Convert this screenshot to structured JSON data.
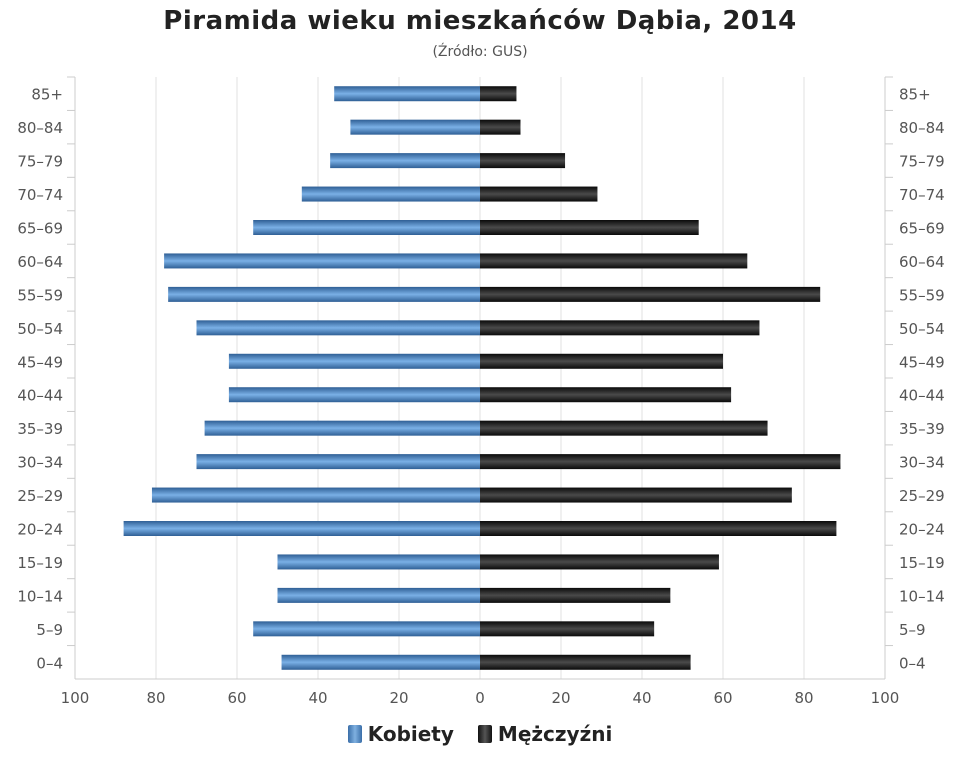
{
  "chart_data": {
    "type": "bar",
    "title": "Piramida wieku mieszkańców Dąbia, 2014",
    "subtitle": "(Źródło: GUS)",
    "categories": [
      "85+",
      "80–84",
      "75–79",
      "70–74",
      "65–69",
      "60–64",
      "55–59",
      "50–54",
      "45–49",
      "40–44",
      "35–39",
      "30–34",
      "25–29",
      "20–24",
      "15–19",
      "10–14",
      "5–9",
      "0–4"
    ],
    "series": [
      {
        "name": "Kobiety",
        "color": "#3a78c0",
        "values": [
          36,
          32,
          37,
          44,
          56,
          78,
          77,
          70,
          62,
          62,
          68,
          70,
          81,
          88,
          50,
          50,
          56,
          49
        ]
      },
      {
        "name": "Mężczyźni",
        "color": "#1a1a1a",
        "values": [
          9,
          10,
          21,
          29,
          54,
          66,
          84,
          69,
          60,
          62,
          71,
          89,
          77,
          88,
          59,
          47,
          43,
          52
        ]
      }
    ],
    "xlim": [
      -100,
      100
    ],
    "xticks": [
      "100",
      "80",
      "60",
      "40",
      "20",
      "0",
      "20",
      "40",
      "60",
      "80",
      "100"
    ],
    "grid": true,
    "legend_position": "bottom-center"
  }
}
